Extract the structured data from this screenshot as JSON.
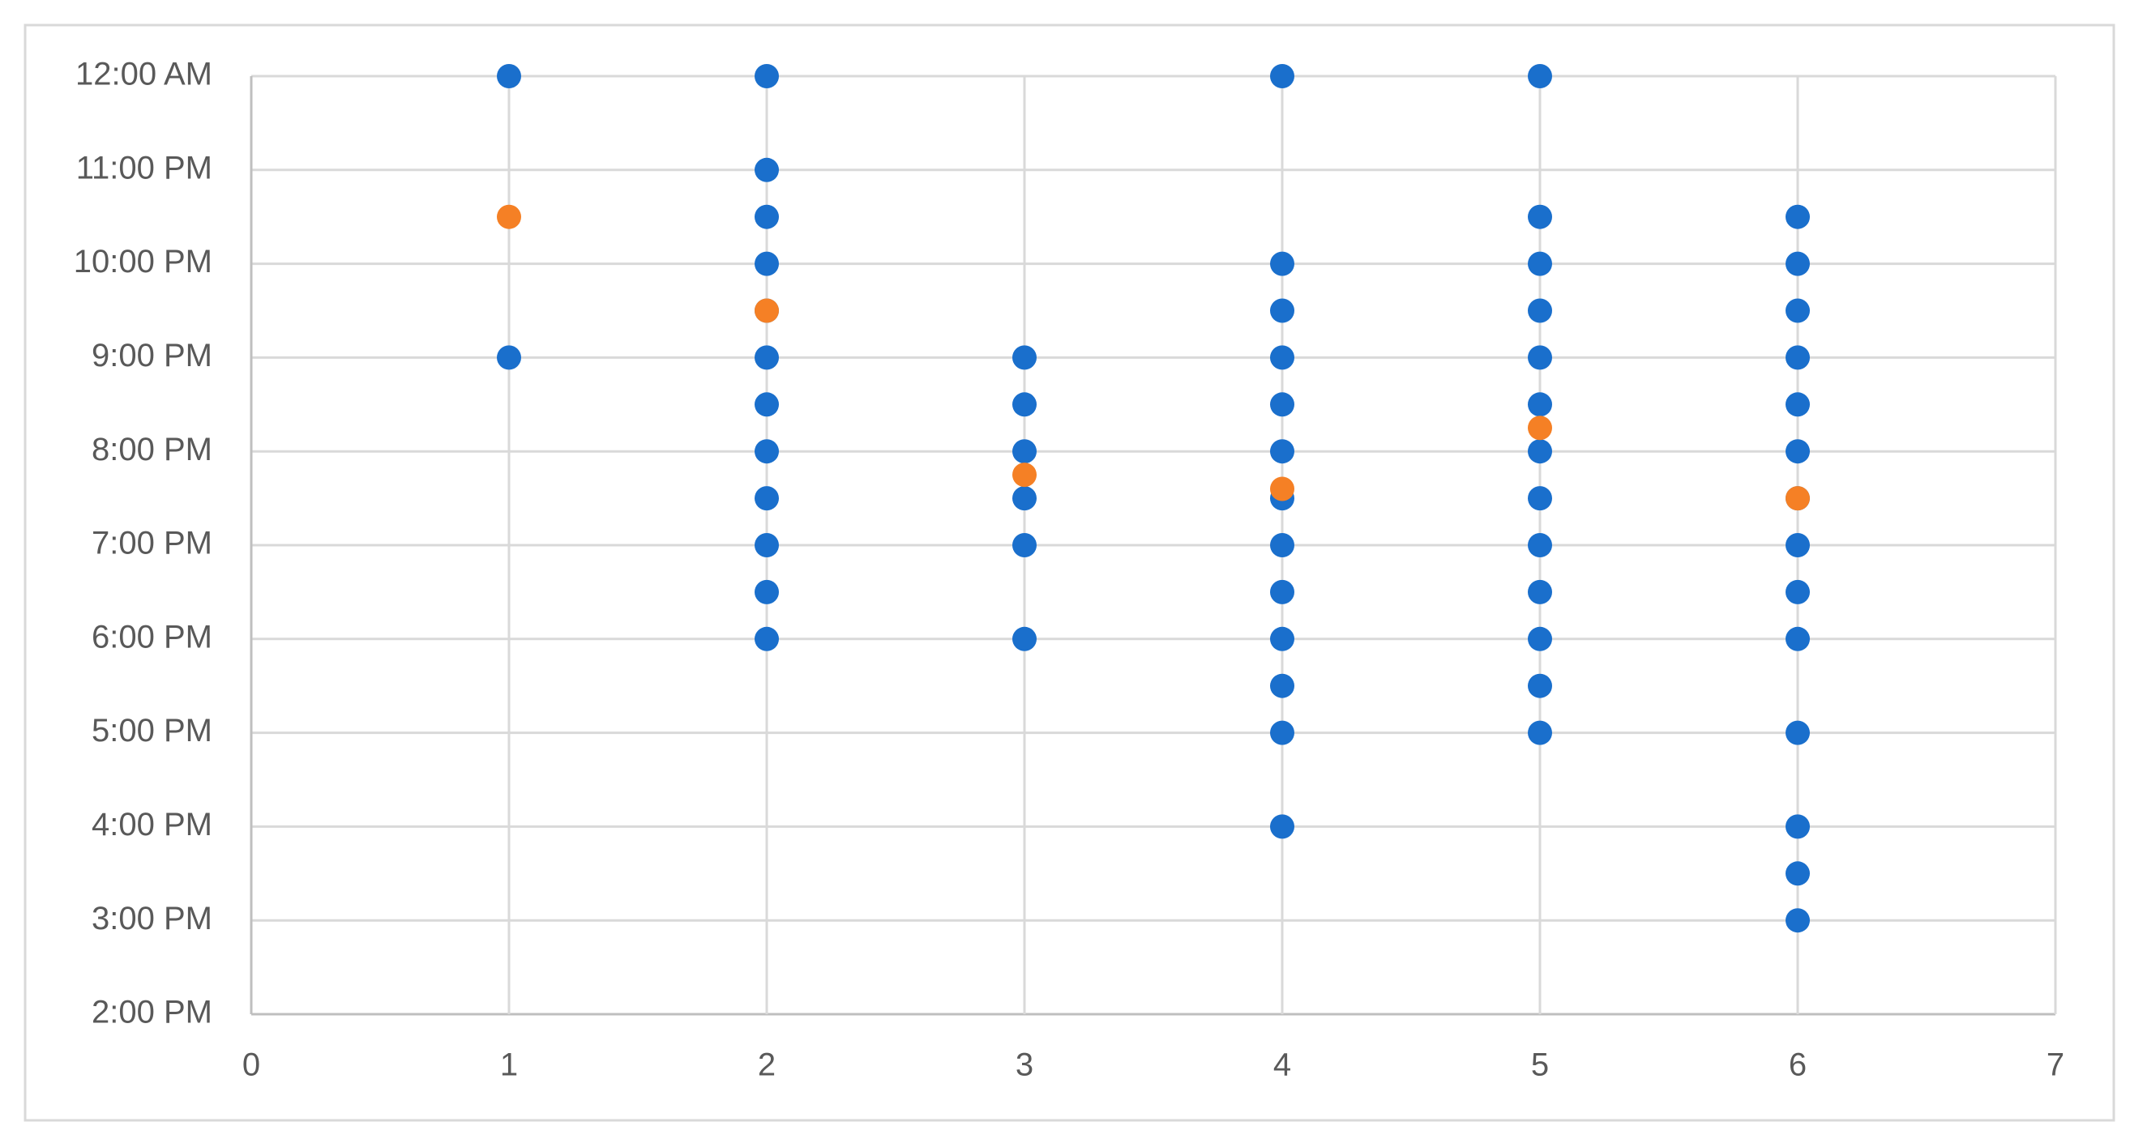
{
  "chart_data": {
    "type": "scatter",
    "xlim": [
      0,
      7
    ],
    "xticks": [
      0,
      1,
      2,
      3,
      4,
      5,
      6,
      7
    ],
    "ylim": [
      14,
      24
    ],
    "yticks": [
      {
        "value": 14,
        "label": "2:00 PM"
      },
      {
        "value": 15,
        "label": "3:00 PM"
      },
      {
        "value": 16,
        "label": "4:00 PM"
      },
      {
        "value": 17,
        "label": "5:00 PM"
      },
      {
        "value": 18,
        "label": "6:00 PM"
      },
      {
        "value": 19,
        "label": "7:00 PM"
      },
      {
        "value": 20,
        "label": "8:00 PM"
      },
      {
        "value": 21,
        "label": "9:00 PM"
      },
      {
        "value": 22,
        "label": "10:00 PM"
      },
      {
        "value": 23,
        "label": "11:00 PM"
      },
      {
        "value": 24,
        "label": "12:00 AM"
      }
    ],
    "grid": true,
    "series": [
      {
        "color": "#1a6fcc",
        "x": [
          1,
          1,
          2,
          2,
          2,
          2,
          2,
          2,
          2,
          2,
          2,
          2,
          2,
          2,
          3,
          3,
          3,
          3,
          3,
          3,
          4,
          4,
          4,
          4,
          4,
          4,
          4,
          4,
          4,
          4,
          4,
          4,
          4,
          5,
          5,
          5,
          5,
          5,
          5,
          5,
          5,
          5,
          5,
          5,
          5,
          5,
          6,
          6,
          6,
          6,
          6,
          6,
          6,
          6,
          6,
          6,
          6,
          6,
          6,
          6
        ],
        "values": [
          24,
          21,
          24,
          23,
          22.5,
          22,
          21.5,
          21,
          20.5,
          20,
          19.5,
          19,
          18.5,
          18,
          21,
          20.5,
          20,
          19.5,
          19,
          18,
          24,
          22,
          21.5,
          21,
          20.5,
          20,
          19.5,
          19,
          18.5,
          18,
          17.5,
          17,
          16,
          24,
          22.5,
          22,
          21.5,
          21,
          20.5,
          20,
          19.5,
          19,
          18.5,
          18,
          17.5,
          17,
          22.5,
          22,
          21.5,
          21,
          20.5,
          20,
          19.5,
          19,
          18.5,
          18,
          17,
          16,
          15.5,
          15
        ]
      },
      {
        "color": "#f58025",
        "x": [
          1,
          2,
          3,
          4,
          5,
          6
        ],
        "values": [
          22.5,
          21.5,
          19.75,
          19.6,
          20.25,
          19.5
        ]
      }
    ]
  }
}
